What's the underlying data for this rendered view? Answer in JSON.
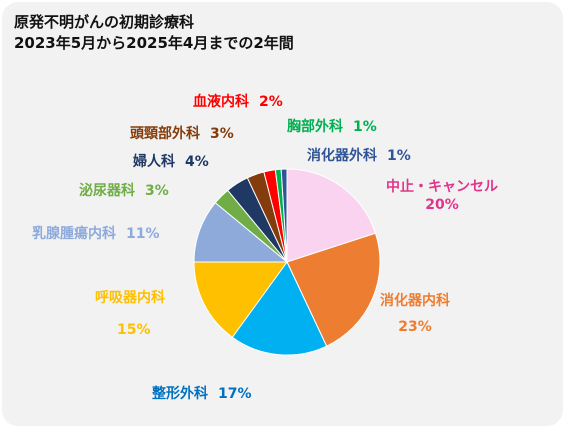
{
  "title": {
    "line1": "原発不明がんの初期診療科",
    "line2": "2023年5月から2025年4月までの2年間"
  },
  "chart_data": {
    "type": "pie",
    "title": "原発不明がんの初期診療科 2023年5月から2025年4月までの2年間",
    "start": "12 o'clock",
    "direction": "clockwise",
    "slices": [
      {
        "name": "中止・キャンセル",
        "value": 20,
        "label": "20%",
        "color": "#f9d3ef",
        "text_color": "#e0358a"
      },
      {
        "name": "消化器内科",
        "value": 23,
        "label": "23%",
        "color": "#ed7d31",
        "text_color": "#ed7d31"
      },
      {
        "name": "整形外科",
        "value": 17,
        "label": "17%",
        "color": "#00b0f0",
        "text_color": "#0070c0"
      },
      {
        "name": "呼吸器内科",
        "value": 15,
        "label": "15%",
        "color": "#ffc000",
        "text_color": "#ffc000"
      },
      {
        "name": "乳腺腫瘍内科",
        "value": 11,
        "label": "11%",
        "color": "#8eaadb",
        "text_color": "#8eaadb"
      },
      {
        "name": "泌尿器科",
        "value": 3,
        "label": "3%",
        "color": "#70ad47",
        "text_color": "#70ad47"
      },
      {
        "name": "婦人科",
        "value": 4,
        "label": "4%",
        "color": "#1f3864",
        "text_color": "#1f3864"
      },
      {
        "name": "頭頸部外科",
        "value": 3,
        "label": "3%",
        "color": "#843c0c",
        "text_color": "#843c0c"
      },
      {
        "name": "血液内科",
        "value": 2,
        "label": "2%",
        "color": "#ff0000",
        "text_color": "#ff0000"
      },
      {
        "name": "胸部外科",
        "value": 1,
        "label": "1%",
        "color": "#00b050",
        "text_color": "#00b050"
      },
      {
        "name": "消化器外科",
        "value": 1,
        "label": "1%",
        "color": "#2f5597",
        "text_color": "#2f5597"
      }
    ]
  }
}
